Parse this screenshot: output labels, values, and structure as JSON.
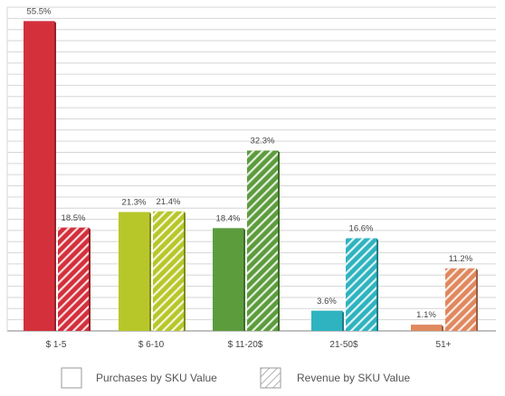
{
  "chart_data": {
    "type": "bar",
    "categories": [
      "$ 1-5",
      "$ 6-10",
      "$ 11-20$",
      "21-50$",
      "51+"
    ],
    "series": [
      {
        "name": "Purchases by SKU Value",
        "values": [
          55.5,
          21.3,
          18.4,
          3.6,
          1.1
        ],
        "labels": [
          "55.5%",
          "21.3%",
          "18.4%",
          "3.6%",
          "1.1%"
        ],
        "pattern": "solid"
      },
      {
        "name": "Revenue by SKU Value",
        "values": [
          18.5,
          21.4,
          32.3,
          16.6,
          11.2
        ],
        "labels": [
          "18.5%",
          "21.4%",
          "32.3%",
          "16.6%",
          "11.2%"
        ],
        "pattern": "hatched"
      }
    ],
    "category_colors": [
      "#d3303c",
      "#b7c72a",
      "#5c9c3d",
      "#2fb3c0",
      "#e0885e"
    ],
    "ylim": [
      0,
      58
    ],
    "grid": true,
    "legend_position": "bottom"
  }
}
